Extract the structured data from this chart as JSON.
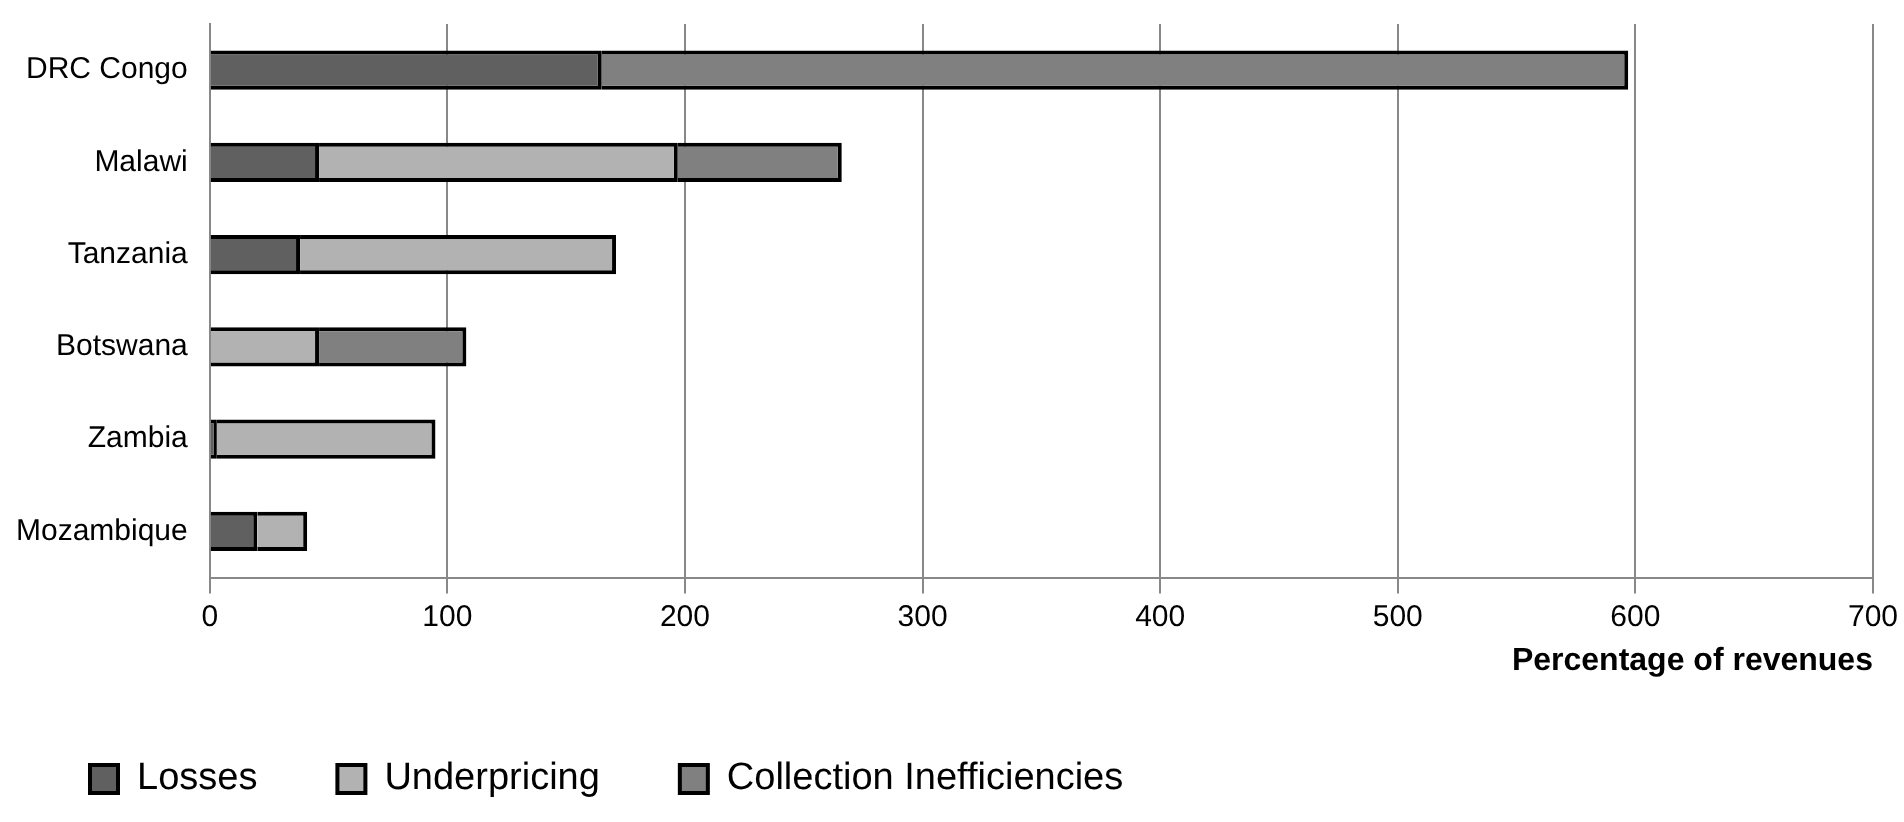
{
  "chart_data": {
    "type": "bar",
    "orientation": "horizontal",
    "stacked": true,
    "xlabel": "Percentage of revenues",
    "categories": [
      "DRC Congo",
      "Malawi",
      "Tanzania",
      "Botswana",
      "Zambia",
      "Mozambique"
    ],
    "series": [
      {
        "name": "Losses",
        "color": "#606060",
        "values": [
          165,
          46,
          38,
          0,
          3,
          20
        ]
      },
      {
        "name": "Underpricing",
        "color": "#b2b2b2",
        "values": [
          0,
          151,
          133,
          46,
          92,
          21
        ]
      },
      {
        "name": "Collection Inefficiencies",
        "color": "#808080",
        "values": [
          432,
          69,
          0,
          62,
          0,
          0
        ]
      }
    ],
    "xlim": [
      0,
      700
    ],
    "xticks": [
      0,
      100,
      200,
      300,
      400,
      500,
      600,
      700
    ],
    "grid": "x",
    "legend": "bottom"
  }
}
